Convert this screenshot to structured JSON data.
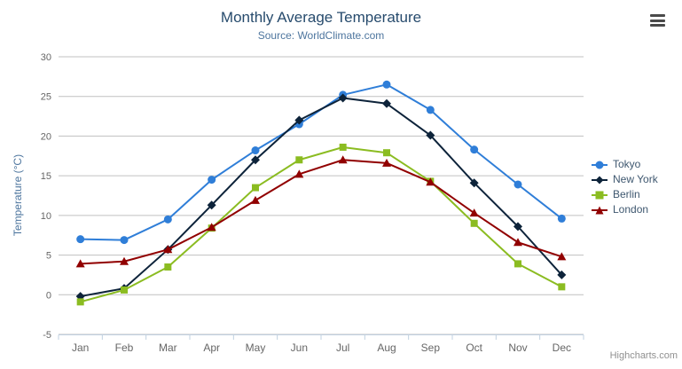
{
  "header": {
    "title": "Monthly Average Temperature",
    "subtitle": "Source: WorldClimate.com"
  },
  "chart_data": {
    "type": "line",
    "title": "Monthly Average Temperature",
    "subtitle": "Source: WorldClimate.com",
    "categories": [
      "Jan",
      "Feb",
      "Mar",
      "Apr",
      "May",
      "Jun",
      "Jul",
      "Aug",
      "Sep",
      "Oct",
      "Nov",
      "Dec"
    ],
    "series": [
      {
        "name": "Tokyo",
        "color": "#2f7ed8",
        "symbol": "circle",
        "values": [
          7.0,
          6.9,
          9.5,
          14.5,
          18.2,
          21.5,
          25.2,
          26.5,
          23.3,
          18.3,
          13.9,
          9.6
        ]
      },
      {
        "name": "New York",
        "color": "#0d233a",
        "symbol": "diamond",
        "values": [
          -0.2,
          0.8,
          5.7,
          11.3,
          17.0,
          22.0,
          24.8,
          24.1,
          20.1,
          14.1,
          8.6,
          2.5
        ]
      },
      {
        "name": "Berlin",
        "color": "#8bbc21",
        "symbol": "square",
        "values": [
          -0.9,
          0.6,
          3.5,
          8.4,
          13.5,
          17.0,
          18.6,
          17.9,
          14.3,
          9.0,
          3.9,
          1.0
        ]
      },
      {
        "name": "London",
        "color": "#910000",
        "symbol": "triangle",
        "values": [
          3.9,
          4.2,
          5.7,
          8.5,
          11.9,
          15.2,
          17.0,
          16.6,
          14.2,
          10.3,
          6.6,
          4.8
        ]
      }
    ],
    "xlabel": "",
    "ylabel": "Temperature (°C)",
    "ylim": [
      -5,
      30
    ],
    "ytick_step": 5,
    "ytick_labels": [
      "-5",
      "0",
      "5",
      "10",
      "15",
      "20",
      "25",
      "30"
    ],
    "grid": true,
    "legend_position": "right"
  },
  "styles": {
    "grid_color": "#C0C0C0",
    "axis_line_color": "#C0D0E0",
    "tick_label_color": "#666666",
    "title_color": "#274b6d",
    "subtitle_color": "#4d759e",
    "legend_text_color": "#3E576F"
  },
  "credit": {
    "text": "Highcharts.com"
  }
}
